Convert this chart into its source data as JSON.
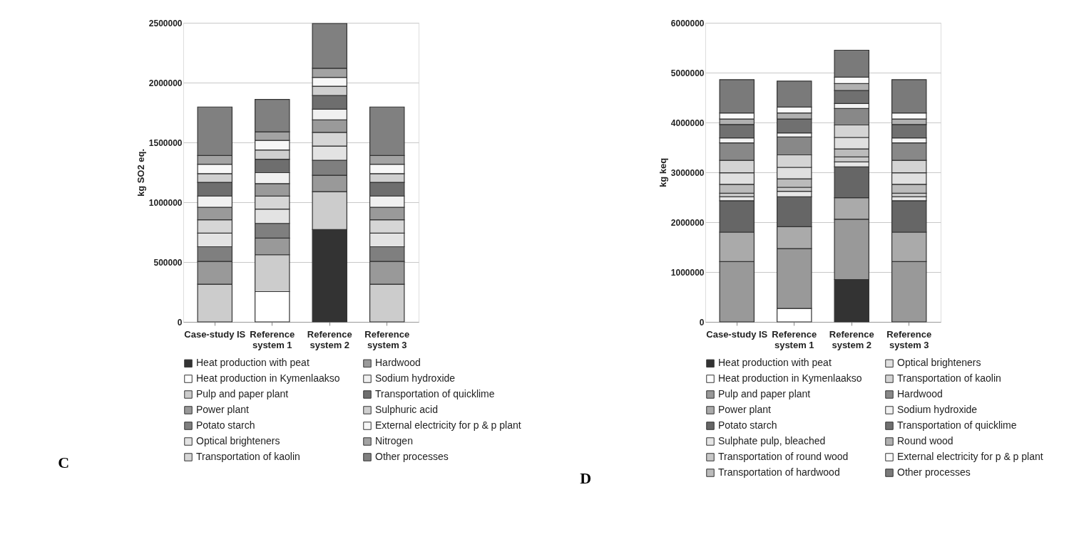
{
  "chart_data": [
    {
      "type": "bar",
      "stacked": true,
      "ylabel": "kg SO2 eq.",
      "categories": [
        "Case-study IS",
        "Reference system 1",
        "Reference system 2",
        "Reference system 3"
      ],
      "ylim": [
        0,
        2500000
      ],
      "yticks": [
        0,
        500000,
        1000000,
        1500000,
        2000000,
        2500000
      ],
      "grid": "y",
      "legend": "bottom",
      "annotations": [
        "C"
      ],
      "series": [
        {
          "name": "Heat production with peat",
          "color": "#333333",
          "values": [
            null,
            null,
            772000,
            null
          ]
        },
        {
          "name": "Heat production in Kymenlaakso",
          "color": "#ffffff",
          "values": [
            null,
            253000,
            null,
            null
          ]
        },
        {
          "name": "Pulp and paper plant",
          "color": "#cccccc",
          "values": [
            315000,
            308000,
            317000,
            315000
          ]
        },
        {
          "name": "Power plant",
          "color": "#999999",
          "values": [
            190000,
            139000,
            137000,
            190000
          ]
        },
        {
          "name": "Potato starch",
          "color": "#7f7f7f",
          "values": [
            123000,
            123000,
            124000,
            123000
          ]
        },
        {
          "name": "Optical brighteners",
          "color": "#e3e3e3",
          "values": [
            114000,
            120000,
            120000,
            114000
          ]
        },
        {
          "name": "Transportation of kaolin",
          "color": "#d6d6d6",
          "values": [
            111000,
            108000,
            114000,
            111000
          ]
        },
        {
          "name": "Hardwood",
          "color": "#9a9a9a",
          "values": [
            104000,
            105000,
            104000,
            104000
          ]
        },
        {
          "name": "Sodium hydroxide",
          "color": "#f0f0f0",
          "values": [
            95000,
            91000,
            90000,
            95000
          ]
        },
        {
          "name": "Transportation of quicklime",
          "color": "#6e6e6e",
          "values": [
            114000,
            112000,
            114000,
            114000
          ]
        },
        {
          "name": "Sulphuric acid",
          "color": "#cfcfcf",
          "values": [
            73000,
            78000,
            78000,
            73000
          ]
        },
        {
          "name": "External electricity for p & p plant",
          "color": "#f7f7f7",
          "values": [
            79000,
            80000,
            74000,
            79000
          ]
        },
        {
          "name": "Nitrogen",
          "color": "#a3a3a3",
          "values": [
            73000,
            72000,
            76000,
            73000
          ]
        },
        {
          "name": "Other processes",
          "color": "#808080",
          "values": [
            405000,
            270000,
            374000,
            405000
          ]
        }
      ]
    },
    {
      "type": "bar",
      "stacked": true,
      "ylabel": "kg keq",
      "categories": [
        "Case-study IS",
        "Reference system 1",
        "Reference system 2",
        "Reference system 3"
      ],
      "ylim": [
        0,
        6000000
      ],
      "yticks": [
        0,
        1000000,
        2000000,
        3000000,
        4000000,
        5000000,
        6000000
      ],
      "grid": "y",
      "legend": "bottom",
      "annotations": [
        "D"
      ],
      "series": [
        {
          "name": "Heat production with peat",
          "color": "#333333",
          "values": [
            null,
            null,
            850000,
            null
          ]
        },
        {
          "name": "Heat production in Kymenlaakso",
          "color": "#ffffff",
          "values": [
            null,
            270000,
            null,
            null
          ]
        },
        {
          "name": "Pulp and paper plant",
          "color": "#999999",
          "values": [
            1210000,
            1200000,
            1210000,
            1210000
          ]
        },
        {
          "name": "Power plant",
          "color": "#aaaaaa",
          "values": [
            590000,
            440000,
            430000,
            590000
          ]
        },
        {
          "name": "Potato starch",
          "color": "#666666",
          "values": [
            630000,
            600000,
            620000,
            630000
          ]
        },
        {
          "name": "Sulphate pulp, bleached",
          "color": "#e6e6e6",
          "values": [
            80000,
            110000,
            100000,
            80000
          ]
        },
        {
          "name": "Transportation of round wood",
          "color": "#c8c8c8",
          "values": [
            70000,
            80000,
            100000,
            70000
          ]
        },
        {
          "name": "Transportation of hardwood",
          "color": "#bbbbbb",
          "values": [
            180000,
            170000,
            160000,
            180000
          ]
        },
        {
          "name": "Optical brighteners",
          "color": "#e0e0e0",
          "values": [
            230000,
            230000,
            230000,
            230000
          ]
        },
        {
          "name": "Transportation of kaolin",
          "color": "#d4d4d4",
          "values": [
            250000,
            250000,
            250000,
            250000
          ]
        },
        {
          "name": "Hardwood",
          "color": "#888888",
          "values": [
            350000,
            360000,
            330000,
            350000
          ]
        },
        {
          "name": "Sodium hydroxide",
          "color": "#f2f2f2",
          "values": [
            100000,
            80000,
            100000,
            100000
          ]
        },
        {
          "name": "Transportation of quicklime",
          "color": "#707070",
          "values": [
            270000,
            280000,
            260000,
            270000
          ]
        },
        {
          "name": "Round wood",
          "color": "#b0b0b0",
          "values": [
            110000,
            120000,
            140000,
            110000
          ]
        },
        {
          "name": "External electricity for p & p plant",
          "color": "#fafafa",
          "values": [
            120000,
            120000,
            130000,
            120000
          ]
        },
        {
          "name": "Other processes",
          "color": "#7a7a7a",
          "values": [
            670000,
            520000,
            540000,
            670000
          ]
        }
      ]
    }
  ]
}
